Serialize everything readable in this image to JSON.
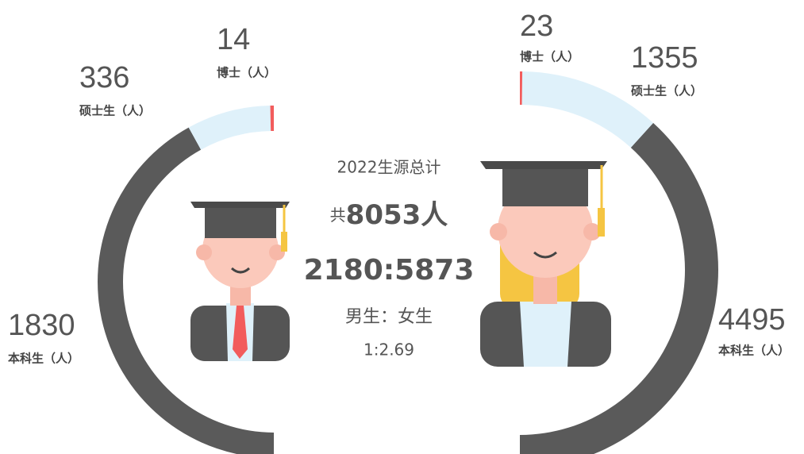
{
  "chart_data": [
    {
      "type": "pie",
      "categories": [
        "博士（人）",
        "硕士生（人）",
        "本科生（人）"
      ],
      "values": [
        14,
        336,
        1830
      ],
      "colors": [
        "#f25c5c",
        "#dff1fa",
        "#5a5a5a"
      ]
    },
    {
      "type": "pie",
      "categories": [
        "博士（人）",
        "硕士生（人）",
        "本科生（人）"
      ],
      "values": [
        23,
        1355,
        4495
      ],
      "colors": [
        "#f25c5c",
        "#dff1fa",
        "#5a5a5a"
      ]
    }
  ],
  "summary": {
    "title": "2022生源总计",
    "total_prefix": "共",
    "total": "8053人",
    "ratio": "2180:5873",
    "ratio_label": "男生：女生",
    "ratio_value": "1:2.69"
  }
}
